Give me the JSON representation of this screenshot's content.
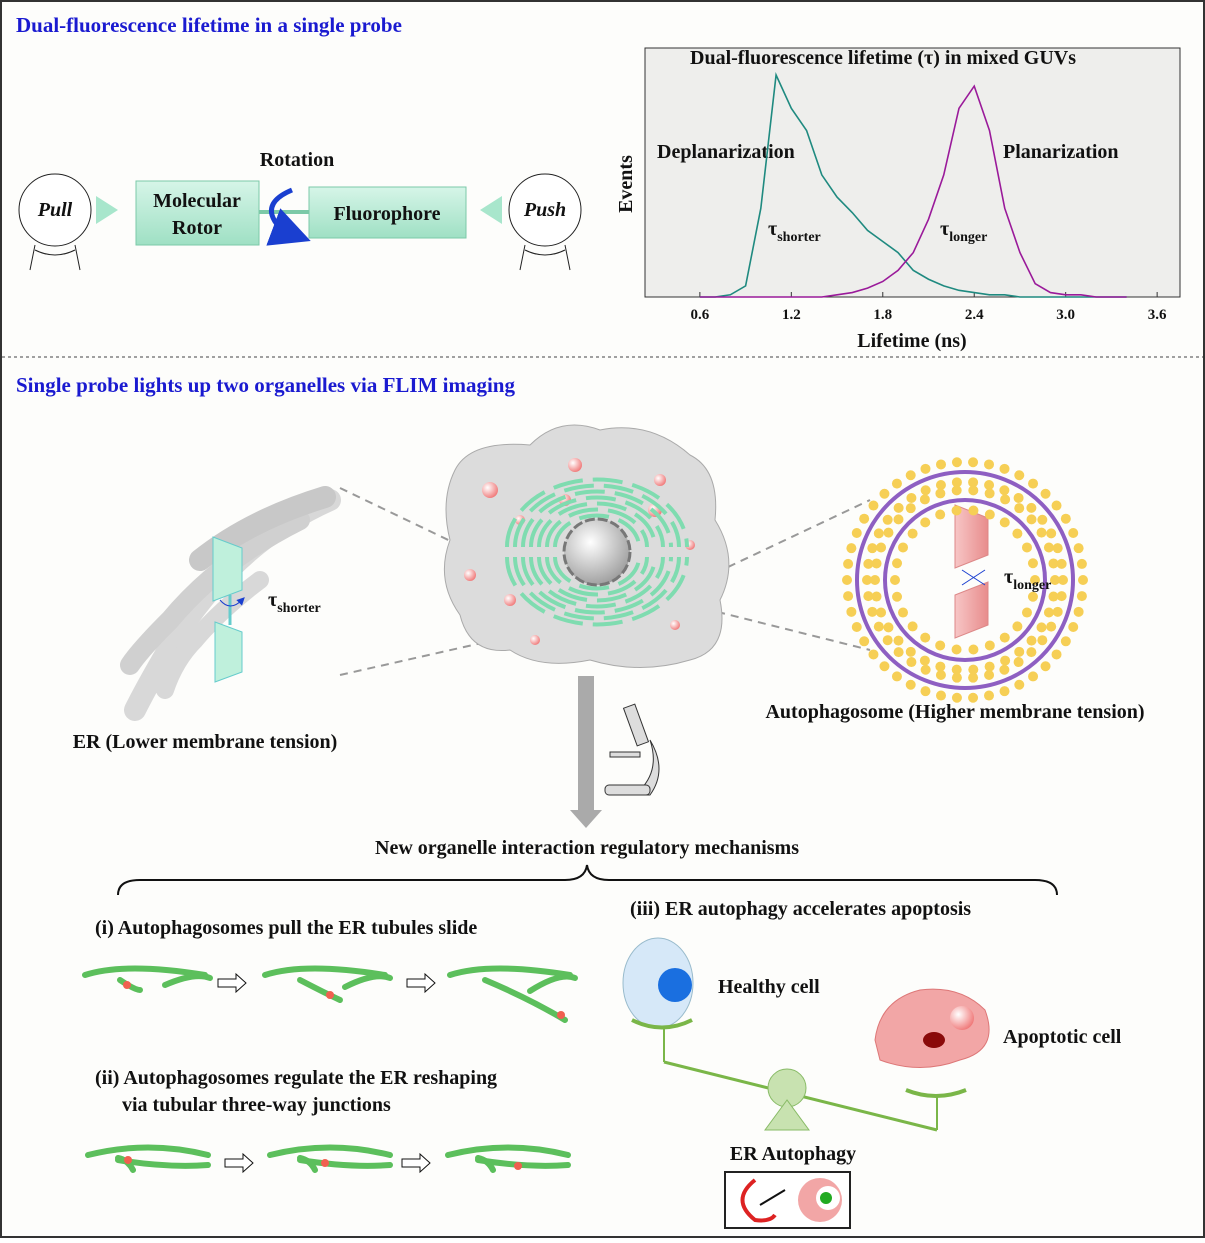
{
  "top": {
    "title": "Dual-fluorescence lifetime in a single probe",
    "pull": "Pull",
    "push": "Push",
    "rotor_line1": "Molecular",
    "rotor_line2": "Rotor",
    "rotation": "Rotation",
    "fluorophore": "Fluorophore"
  },
  "chart_data": {
    "type": "line",
    "title": "Dual-fluorescence lifetime (τ) in mixed GUVs",
    "x_label": "Lifetime (ns)",
    "y_label": "Events",
    "annotations": [
      "Deplanarization",
      "Planarization"
    ],
    "tau_shorter": {
      "symbol": "τ",
      "sub": "shorter"
    },
    "tau_longer": {
      "symbol": "τ",
      "sub": "longer"
    },
    "x": [
      0.6,
      0.7,
      0.8,
      0.9,
      1.0,
      1.1,
      1.2,
      1.3,
      1.4,
      1.5,
      1.6,
      1.7,
      1.8,
      1.9,
      2.0,
      2.1,
      2.2,
      2.3,
      2.4,
      2.5,
      2.6,
      2.7,
      2.8,
      2.9,
      3.0,
      3.1,
      3.2,
      3.3,
      3.4
    ],
    "series": [
      {
        "name": "Deplanarization",
        "color": "#1f8a80",
        "values": [
          0,
          0,
          0.01,
          0.05,
          0.4,
          1.0,
          0.85,
          0.75,
          0.55,
          0.45,
          0.38,
          0.3,
          0.25,
          0.2,
          0.12,
          0.08,
          0.05,
          0.03,
          0.02,
          0.01,
          0.01,
          0,
          0,
          0,
          0,
          0,
          0,
          0,
          0
        ]
      },
      {
        "name": "Planarization",
        "color": "#9a1a9a",
        "values": [
          0,
          0,
          0,
          0,
          0,
          0,
          0,
          0,
          0,
          0.01,
          0.02,
          0.04,
          0.07,
          0.12,
          0.2,
          0.35,
          0.55,
          0.85,
          0.95,
          0.75,
          0.4,
          0.2,
          0.06,
          0.02,
          0.01,
          0.01,
          0,
          0,
          0
        ]
      }
    ],
    "xlim": [
      0.24,
      3.75
    ],
    "ylim": [
      0,
      1
    ],
    "xticks": [
      0.6,
      1.2,
      1.8,
      2.4,
      {
        "value": 3.0,
        "label": "3.0"
      },
      3.6
    ]
  },
  "bottom": {
    "title": "Single probe lights up two organelles via FLIM imaging",
    "er_label": "ER (Lower membrane tension)",
    "auto_label": "Autophagosome (Higher membrane tension)",
    "tau_shorter": {
      "symbol": "τ",
      "sub": "shorter"
    },
    "tau_longer": {
      "symbol": "τ",
      "sub": "longer"
    },
    "mechanisms": "New organelle interaction regulatory mechanisms",
    "item1": "(i) Autophagosomes pull the ER tubules slide",
    "item2_line1": "(ii) Autophagosomes regulate the ER reshaping",
    "item2_line2": "via  tubular three-way junctions",
    "item3": "(iii) ER autophagy accelerates apoptosis",
    "healthy": "Healthy cell",
    "apoptotic": "Apoptotic cell",
    "er_autophagy": "ER Autophagy"
  }
}
